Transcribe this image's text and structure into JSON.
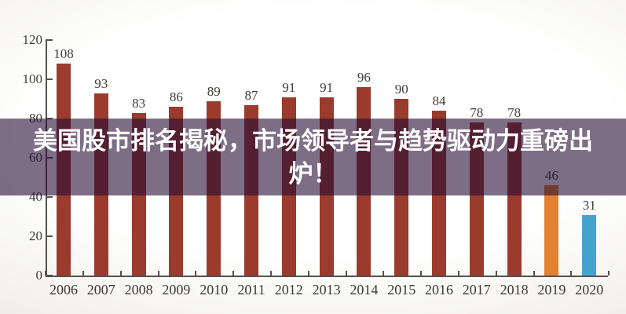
{
  "chart_data": {
    "type": "bar",
    "title": "",
    "xlabel": "",
    "ylabel": "",
    "categories": [
      "2006",
      "2007",
      "2008",
      "2009",
      "2010",
      "2011",
      "2012",
      "2013",
      "2014",
      "2015",
      "2016",
      "2017",
      "2018",
      "2019",
      "2020"
    ],
    "values": [
      108,
      93,
      83,
      86,
      89,
      87,
      91,
      91,
      96,
      90,
      84,
      78,
      78,
      46,
      31
    ],
    "ylim": [
      0,
      120
    ],
    "yticks": [
      0,
      20,
      40,
      60,
      80,
      100,
      120
    ],
    "grid": false,
    "legend": null,
    "bar_color_default": "#9a3b2d",
    "bar_color_overrides": {
      "2019": "#e2812f",
      "2020": "#45a3cf"
    },
    "axis_color": "#55514d",
    "tick_label_color": "#3f3e3b"
  },
  "overlay": {
    "headline": "美国股市排名揭秘，市场领导者与趋势驱动力重磅出炉！",
    "lines": [
      "美国股市排名揭秘，市场领导者与趋势驱动力重磅出",
      "炉！"
    ],
    "text_color": "#ffffff",
    "background_color": "rgba(38,14,52,0.6)"
  }
}
